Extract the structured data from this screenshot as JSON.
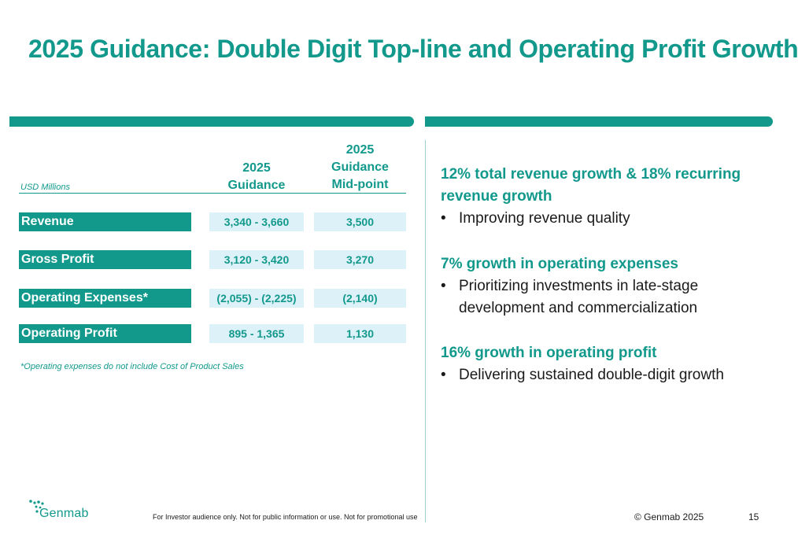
{
  "title": "2025 Guidance: Double Digit Top-line and Operating Profit Growth",
  "table": {
    "units_label": "USD Millions",
    "col1_header": [
      "2025",
      "Guidance"
    ],
    "col2_header": [
      "2025",
      "Guidance",
      "Mid-point"
    ],
    "rows": [
      {
        "label": "Revenue",
        "guidance": "3,340 - 3,660",
        "midpoint": "3,500"
      },
      {
        "label": "Gross Profit",
        "guidance": "3,120 - 3,420",
        "midpoint": "3,270"
      },
      {
        "label": "Operating Expenses*",
        "guidance": "(2,055) - (2,225)",
        "midpoint": "(2,140)"
      },
      {
        "label": "Operating Profit",
        "guidance": "895 - 1,365",
        "midpoint": "1,130"
      }
    ],
    "footnote": "*Operating expenses do not include Cost of Product Sales"
  },
  "highlights": [
    {
      "heading": [
        "12% total revenue growth & 18% recurring",
        "revenue growth"
      ],
      "bullets": [
        [
          "Improving revenue quality"
        ]
      ]
    },
    {
      "heading": [
        "7% growth in operating expenses"
      ],
      "bullets": [
        [
          "Prioritizing investments in late-stage",
          "development and commercialization"
        ]
      ]
    },
    {
      "heading": [
        "16% growth in operating profit"
      ],
      "bullets": [
        [
          "Delivering sustained double-digit growth"
        ]
      ]
    }
  ],
  "bullet_char": "•",
  "footer": {
    "logo_text": "Genmab",
    "disclaimer": "For Investor audience only. Not for public information or use. Not for promotional use",
    "copyright": "© Genmab 2025",
    "page_number": "15"
  },
  "colors": {
    "accent": "#12998c",
    "cell_fill": "#ddf1f9",
    "text": "#1a1a1a"
  }
}
